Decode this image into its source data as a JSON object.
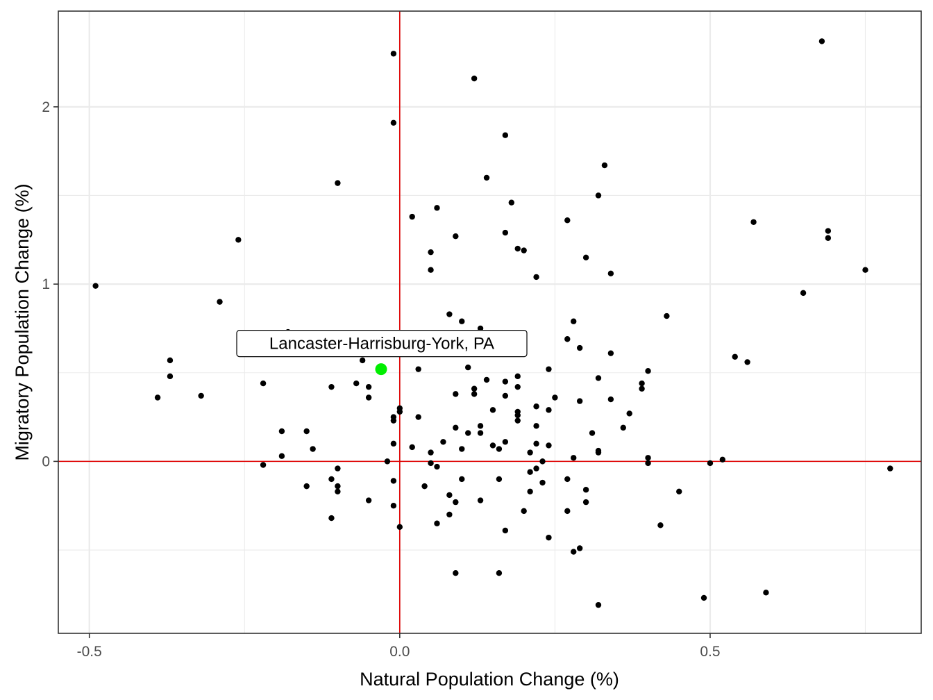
{
  "chart_data": {
    "type": "scatter",
    "title": "",
    "xlabel": "Natural Population Change (%)",
    "ylabel": "Migratory Population Change (%)",
    "xlim": [
      -0.55,
      0.84
    ],
    "ylim": [
      -0.97,
      2.54
    ],
    "x_ticks": [
      -0.5,
      0.0,
      0.5
    ],
    "x_tick_labels": [
      "-0.5",
      "0.0",
      "0.5"
    ],
    "y_ticks": [
      0,
      1,
      2
    ],
    "y_tick_labels": [
      "0",
      "1",
      "2"
    ],
    "x_minor": [
      -0.25,
      0.25,
      0.75
    ],
    "y_minor": [
      -0.5,
      0.5,
      1.5
    ],
    "grid": true,
    "reference_lines": {
      "x": 0,
      "y": 0,
      "color": "#e00000"
    },
    "colors": {
      "points": "#000000",
      "highlight": "#00ee00",
      "reference": "#e00000",
      "grid": "#ebebeb",
      "border": "#333333"
    },
    "points": [
      [
        -0.49,
        0.99
      ],
      [
        -0.39,
        0.36
      ],
      [
        -0.37,
        0.57
      ],
      [
        -0.37,
        0.48
      ],
      [
        -0.32,
        0.37
      ],
      [
        -0.29,
        0.9
      ],
      [
        -0.26,
        1.25
      ],
      [
        -0.22,
        -0.02
      ],
      [
        -0.22,
        0.44
      ],
      [
        -0.19,
        0.17
      ],
      [
        -0.19,
        0.03
      ],
      [
        -0.18,
        0.73
      ],
      [
        -0.15,
        0.17
      ],
      [
        -0.15,
        -0.14
      ],
      [
        -0.14,
        0.07
      ],
      [
        -0.11,
        0.42
      ],
      [
        -0.11,
        -0.1
      ],
      [
        -0.11,
        -0.32
      ],
      [
        -0.1,
        1.57
      ],
      [
        -0.1,
        -0.04
      ],
      [
        -0.1,
        -0.14
      ],
      [
        -0.1,
        -0.17
      ],
      [
        -0.07,
        0.44
      ],
      [
        -0.06,
        0.57
      ],
      [
        -0.05,
        0.42
      ],
      [
        -0.05,
        0.36
      ],
      [
        -0.05,
        -0.22
      ],
      [
        -0.02,
        0.0
      ],
      [
        -0.01,
        2.3
      ],
      [
        -0.01,
        1.91
      ],
      [
        -0.01,
        0.25
      ],
      [
        -0.01,
        0.23
      ],
      [
        -0.01,
        0.1
      ],
      [
        -0.01,
        -0.11
      ],
      [
        -0.01,
        -0.25
      ],
      [
        0.0,
        0.3
      ],
      [
        0.0,
        0.28
      ],
      [
        0.0,
        -0.37
      ],
      [
        0.02,
        1.38
      ],
      [
        0.02,
        0.08
      ],
      [
        0.03,
        0.52
      ],
      [
        0.03,
        0.25
      ],
      [
        0.04,
        -0.14
      ],
      [
        0.05,
        1.18
      ],
      [
        0.05,
        1.08
      ],
      [
        0.05,
        0.05
      ],
      [
        0.05,
        -0.01
      ],
      [
        0.06,
        1.43
      ],
      [
        0.06,
        -0.03
      ],
      [
        0.06,
        -0.35
      ],
      [
        0.07,
        0.11
      ],
      [
        0.08,
        0.83
      ],
      [
        0.08,
        -0.19
      ],
      [
        0.08,
        -0.3
      ],
      [
        0.09,
        1.27
      ],
      [
        0.09,
        0.38
      ],
      [
        0.09,
        0.19
      ],
      [
        0.09,
        -0.23
      ],
      [
        0.09,
        -0.63
      ],
      [
        0.1,
        0.79
      ],
      [
        0.1,
        0.07
      ],
      [
        0.1,
        -0.1
      ],
      [
        0.11,
        0.53
      ],
      [
        0.11,
        0.16
      ],
      [
        0.12,
        2.16
      ],
      [
        0.12,
        0.41
      ],
      [
        0.12,
        0.38
      ],
      [
        0.13,
        0.75
      ],
      [
        0.13,
        0.2
      ],
      [
        0.13,
        0.16
      ],
      [
        0.13,
        -0.22
      ],
      [
        0.14,
        1.6
      ],
      [
        0.14,
        0.46
      ],
      [
        0.15,
        0.29
      ],
      [
        0.15,
        0.09
      ],
      [
        0.16,
        0.07
      ],
      [
        0.16,
        -0.1
      ],
      [
        0.16,
        -0.63
      ],
      [
        0.17,
        1.84
      ],
      [
        0.17,
        1.29
      ],
      [
        0.17,
        0.45
      ],
      [
        0.17,
        0.37
      ],
      [
        0.17,
        0.11
      ],
      [
        0.17,
        -0.39
      ],
      [
        0.18,
        1.46
      ],
      [
        0.19,
        1.2
      ],
      [
        0.19,
        0.48
      ],
      [
        0.19,
        0.42
      ],
      [
        0.19,
        0.28
      ],
      [
        0.19,
        0.26
      ],
      [
        0.19,
        0.23
      ],
      [
        0.2,
        1.19
      ],
      [
        0.2,
        -0.28
      ],
      [
        0.21,
        0.05
      ],
      [
        0.21,
        -0.06
      ],
      [
        0.21,
        -0.17
      ],
      [
        0.22,
        1.04
      ],
      [
        0.22,
        0.31
      ],
      [
        0.22,
        0.2
      ],
      [
        0.22,
        0.1
      ],
      [
        0.22,
        -0.04
      ],
      [
        0.23,
        0.0
      ],
      [
        0.23,
        -0.12
      ],
      [
        0.24,
        0.52
      ],
      [
        0.24,
        0.29
      ],
      [
        0.24,
        0.09
      ],
      [
        0.24,
        -0.43
      ],
      [
        0.25,
        0.36
      ],
      [
        0.27,
        1.36
      ],
      [
        0.27,
        0.69
      ],
      [
        0.27,
        -0.1
      ],
      [
        0.27,
        -0.28
      ],
      [
        0.28,
        0.79
      ],
      [
        0.28,
        0.02
      ],
      [
        0.28,
        -0.51
      ],
      [
        0.29,
        0.64
      ],
      [
        0.29,
        0.34
      ],
      [
        0.29,
        -0.49
      ],
      [
        0.3,
        1.15
      ],
      [
        0.3,
        -0.16
      ],
      [
        0.3,
        -0.23
      ],
      [
        0.31,
        0.16
      ],
      [
        0.32,
        1.5
      ],
      [
        0.32,
        0.47
      ],
      [
        0.32,
        0.06
      ],
      [
        0.32,
        0.05
      ],
      [
        0.32,
        -0.81
      ],
      [
        0.33,
        1.67
      ],
      [
        0.34,
        1.06
      ],
      [
        0.34,
        0.61
      ],
      [
        0.34,
        0.35
      ],
      [
        0.36,
        0.19
      ],
      [
        0.37,
        0.27
      ],
      [
        0.39,
        0.44
      ],
      [
        0.39,
        0.41
      ],
      [
        0.4,
        0.51
      ],
      [
        0.4,
        0.02
      ],
      [
        0.4,
        -0.01
      ],
      [
        0.42,
        -0.36
      ],
      [
        0.43,
        0.82
      ],
      [
        0.45,
        -0.17
      ],
      [
        0.49,
        -0.77
      ],
      [
        0.5,
        -0.01
      ],
      [
        0.52,
        0.01
      ],
      [
        0.54,
        0.59
      ],
      [
        0.56,
        0.56
      ],
      [
        0.57,
        1.35
      ],
      [
        0.59,
        -0.74
      ],
      [
        0.65,
        0.95
      ],
      [
        0.68,
        2.37
      ],
      [
        0.69,
        1.3
      ],
      [
        0.69,
        1.26
      ],
      [
        0.75,
        1.08
      ],
      [
        0.79,
        -0.04
      ]
    ],
    "highlight": {
      "label": "Lancaster-Harrisburg-York, PA",
      "x": -0.03,
      "y": 0.52
    }
  }
}
